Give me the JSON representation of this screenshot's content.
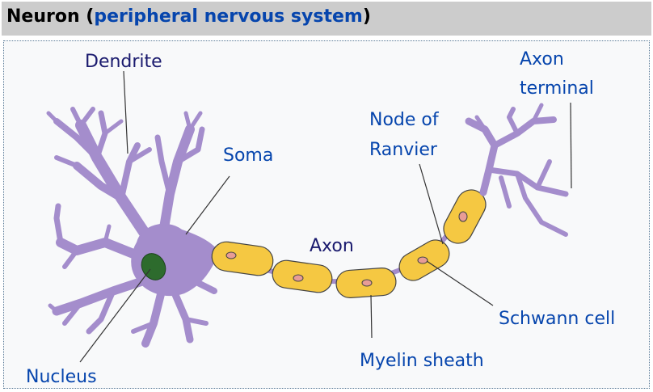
{
  "title": {
    "main": "Neuron",
    "open_paren": " (",
    "link": "peripheral nervous system",
    "close_paren": ")"
  },
  "labels": {
    "dendrite": "Dendrite",
    "soma": "Soma",
    "nucleus": "Nucleus",
    "axon": "Axon",
    "node_line1": "Node of",
    "node_line2": "Ranvier",
    "axon_terminal_line1": "Axon",
    "axon_terminal_line2": "terminal",
    "schwann_cell": "Schwann cell",
    "myelin_sheath": "Myelin sheath"
  },
  "colors": {
    "cell_body": "#a48dcc",
    "myelin": "#f5c842",
    "nucleus": "#2d6b2d",
    "label_dark": "#1a1a6e",
    "label_blue": "#0645ad"
  }
}
